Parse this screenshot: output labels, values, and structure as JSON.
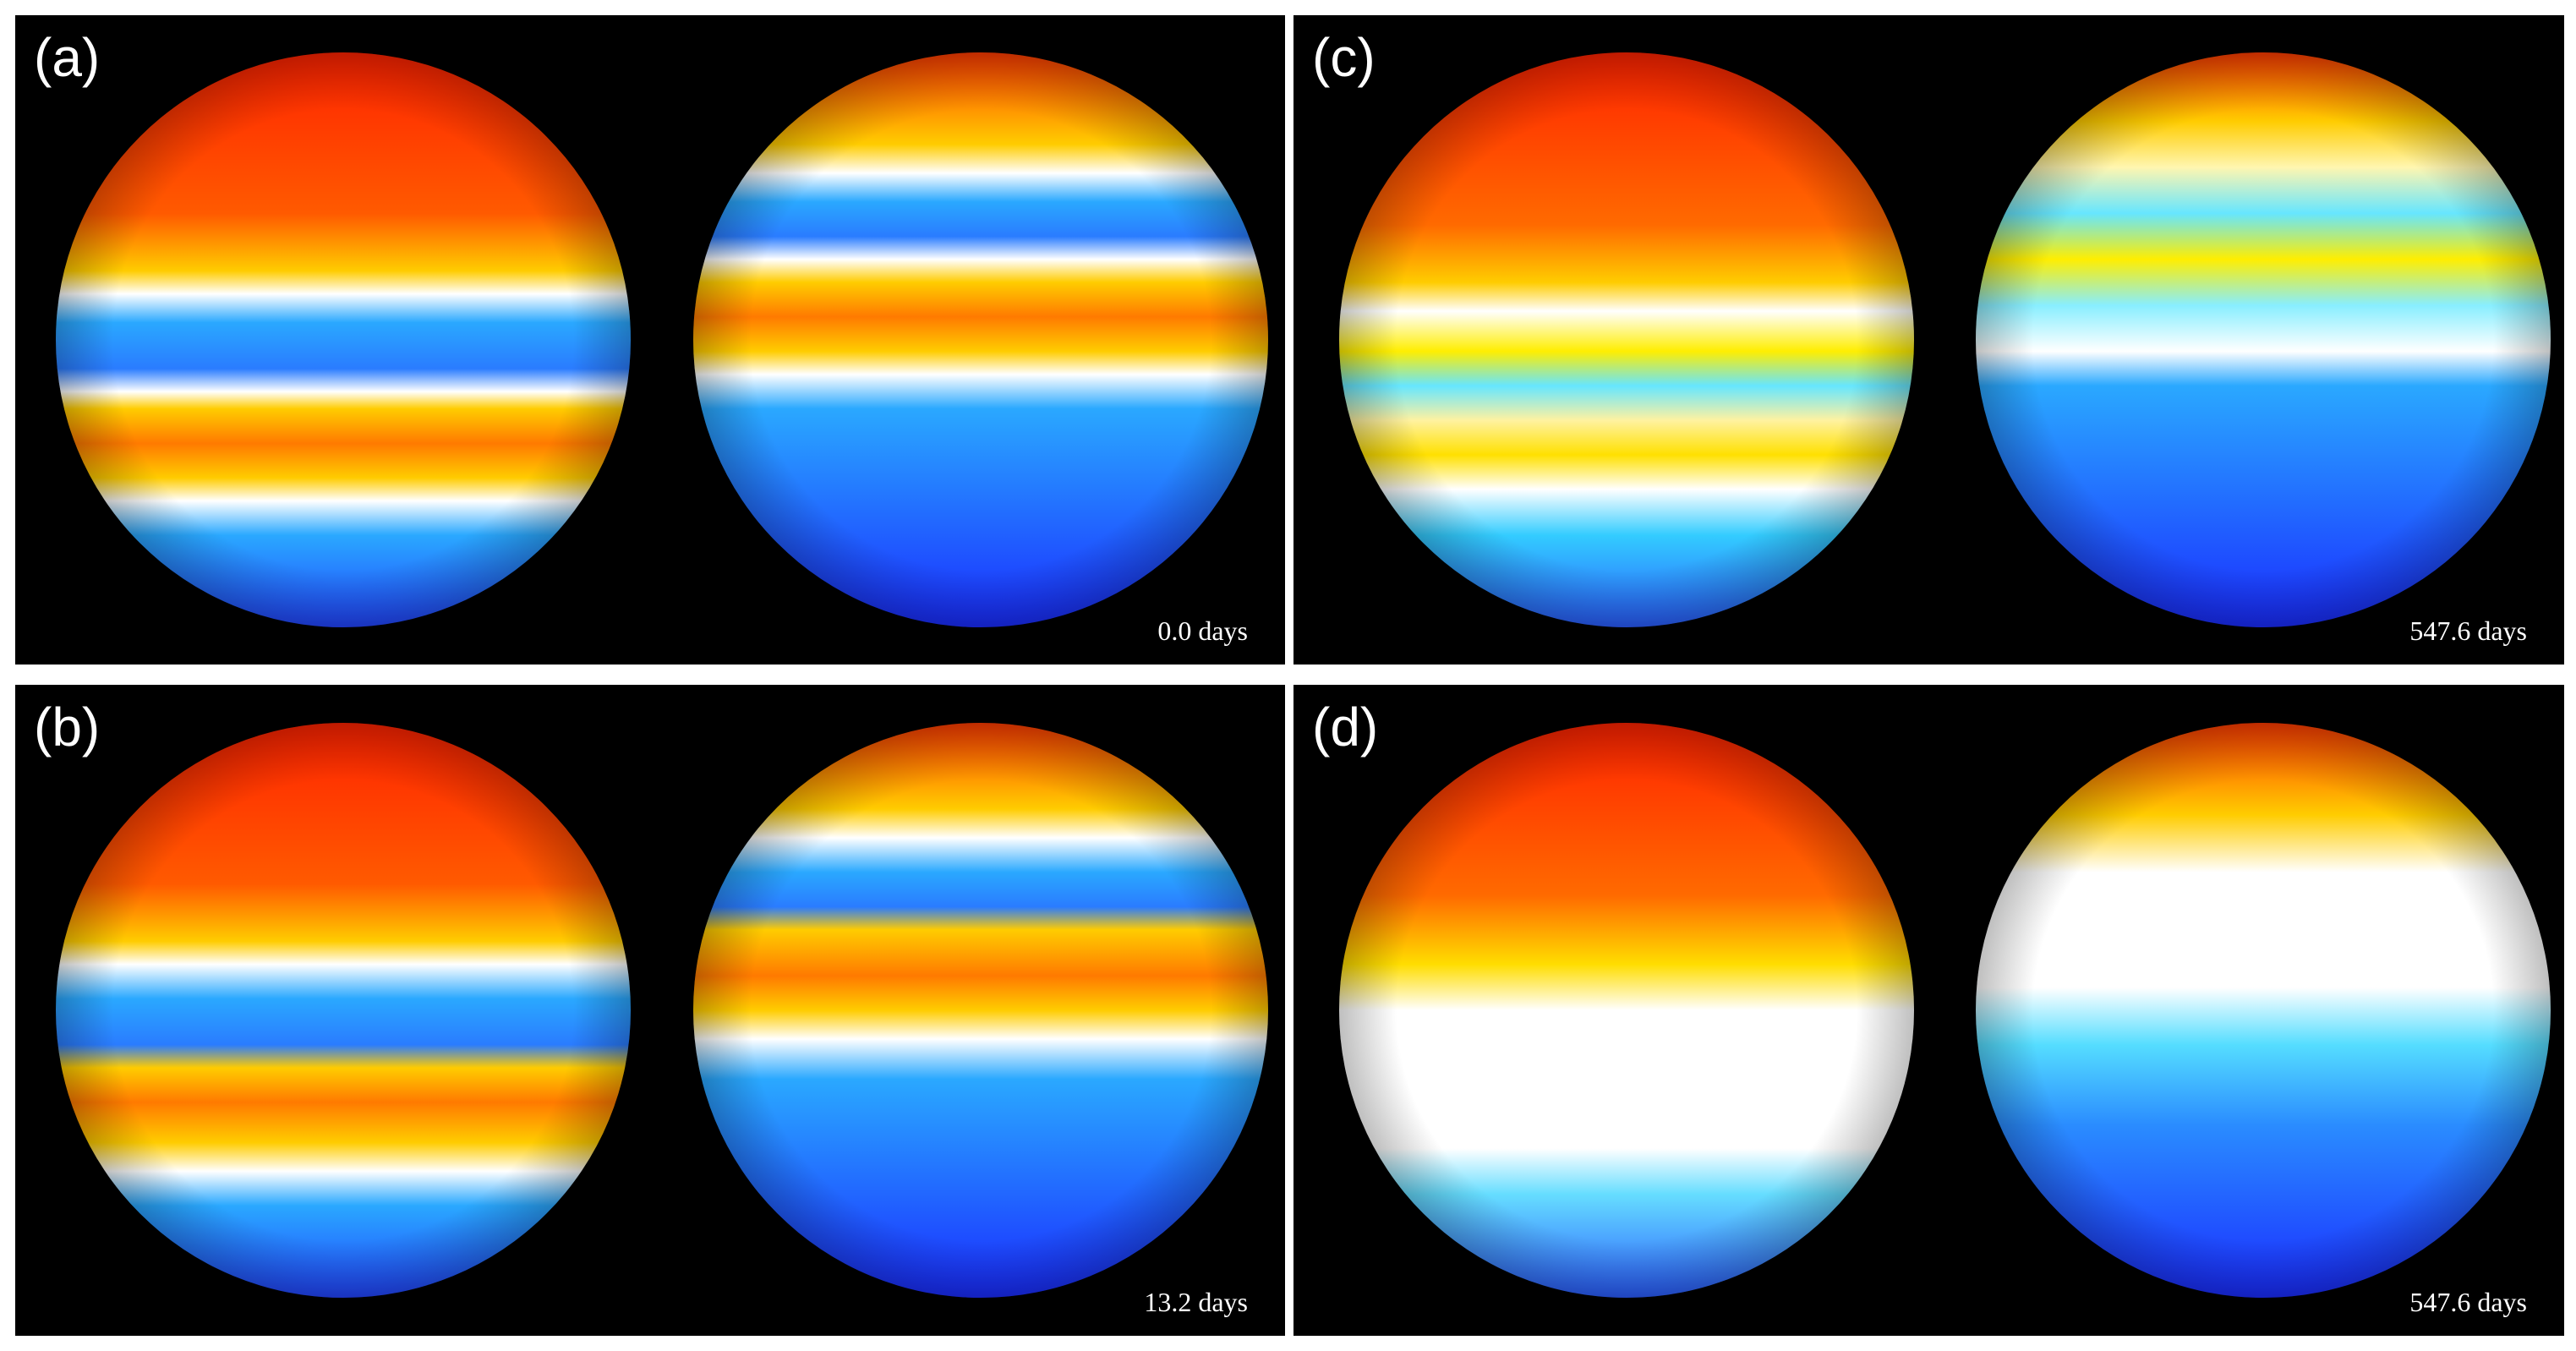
{
  "panels": {
    "a": {
      "label": "(a)",
      "time": "0.0 days"
    },
    "b": {
      "label": "(b)",
      "time": "13.2 days"
    },
    "c": {
      "label": "(c)",
      "time": "547.6 days"
    },
    "d": {
      "label": "(d)",
      "time": "547.6 days"
    }
  },
  "colors": {
    "background": "#000000",
    "red": "#ff2a00",
    "orange": "#ff8a00",
    "yellow": "#ffee00",
    "white": "#ffffff",
    "cyan": "#33ddff",
    "blue": "#2a6cff",
    "deep_blue": "#1a2cff"
  }
}
